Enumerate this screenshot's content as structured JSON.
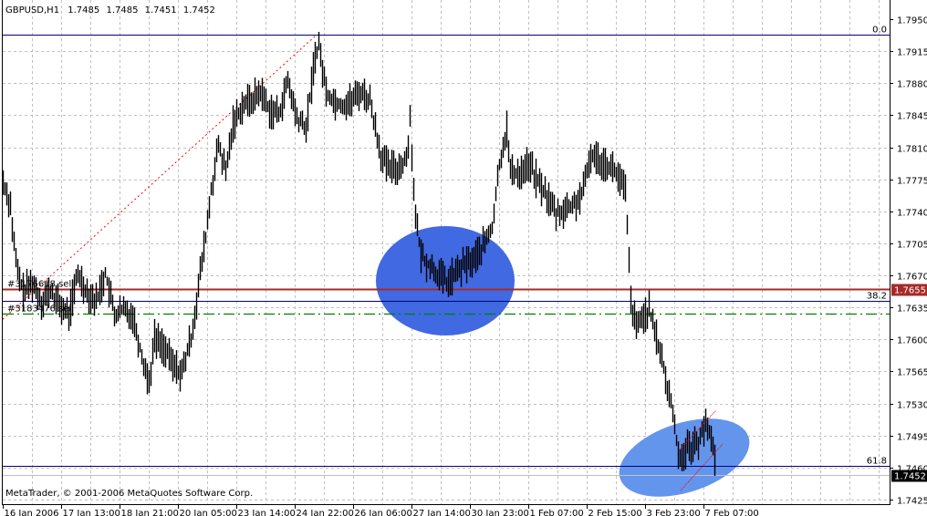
{
  "header": {
    "symbol": "GBPUSD,H1",
    "open": "1.7485",
    "high": "1.7485",
    "low": "1.7451",
    "close": "1.7452"
  },
  "copyright": "MetaTrader, © 2001-2006 MetaQuotes Software Corp.",
  "chart_data": {
    "type": "ohlc-bar",
    "title": "GBPUSD,H1",
    "timeframe": "H1",
    "ylim": [
      1.7425,
      1.795
    ],
    "y_ticks": [
      "1.7950",
      "1.7915",
      "1.7880",
      "1.7845",
      "1.7810",
      "1.7775",
      "1.7740",
      "1.7705",
      "1.7670",
      "1.7635",
      "1.7600",
      "1.7565",
      "1.7530",
      "1.7495",
      "1.7460",
      "1.7425"
    ],
    "x_ticks": [
      "16 Jan 2006",
      "17 Jan 13:00",
      "18 Jan 21:00",
      "20 Jan 05:00",
      "23 Jan 14:00",
      "24 Jan 22:00",
      "26 Jan 06:00",
      "27 Jan 14:00",
      "30 Jan 23:00",
      "1 Feb 07:00",
      "2 Feb 15:00",
      "3 Feb 23:00",
      "7 Feb 07:00"
    ],
    "bars_per_tick": 32,
    "grid": true,
    "price_path": [
      [
        0,
        1.7772
      ],
      [
        4,
        1.7747
      ],
      [
        6,
        1.7702
      ],
      [
        8,
        1.7672
      ],
      [
        11,
        1.7652
      ],
      [
        16,
        1.7662
      ],
      [
        21,
        1.7642
      ],
      [
        26,
        1.7652
      ],
      [
        31,
        1.7637
      ],
      [
        36,
        1.7627
      ],
      [
        41,
        1.7672
      ],
      [
        46,
        1.7652
      ],
      [
        51,
        1.7642
      ],
      [
        56,
        1.7672
      ],
      [
        61,
        1.7627
      ],
      [
        66,
        1.7632
      ],
      [
        71,
        1.7627
      ],
      [
        76,
        1.7582
      ],
      [
        80,
        1.7553
      ],
      [
        83,
        1.7602
      ],
      [
        88,
        1.7592
      ],
      [
        93,
        1.7572
      ],
      [
        98,
        1.7563
      ],
      [
        103,
        1.7602
      ],
      [
        106,
        1.7642
      ],
      [
        108,
        1.7672
      ],
      [
        111,
        1.7712
      ],
      [
        114,
        1.7762
      ],
      [
        118,
        1.7812
      ],
      [
        122,
        1.7782
      ],
      [
        126,
        1.7836
      ],
      [
        131,
        1.7856
      ],
      [
        136,
        1.7861
      ],
      [
        141,
        1.7871
      ],
      [
        146,
        1.7851
      ],
      [
        151,
        1.7846
      ],
      [
        156,
        1.7881
      ],
      [
        161,
        1.7841
      ],
      [
        166,
        1.7831
      ],
      [
        171,
        1.7911
      ],
      [
        173,
        1.7921
      ],
      [
        177,
        1.7871
      ],
      [
        181,
        1.7861
      ],
      [
        186,
        1.7856
      ],
      [
        191,
        1.7861
      ],
      [
        196,
        1.7871
      ],
      [
        201,
        1.7861
      ],
      [
        203,
        1.7841
      ],
      [
        207,
        1.7802
      ],
      [
        211,
        1.7787
      ],
      [
        216,
        1.7787
      ],
      [
        221,
        1.7797
      ],
      [
        223,
        1.7841
      ],
      [
        226,
        1.7732
      ],
      [
        229,
        1.7692
      ],
      [
        233,
        1.7682
      ],
      [
        238,
        1.7672
      ],
      [
        243,
        1.7662
      ],
      [
        248,
        1.7672
      ],
      [
        253,
        1.7682
      ],
      [
        258,
        1.7687
      ],
      [
        263,
        1.7702
      ],
      [
        268,
        1.7722
      ],
      [
        272,
        1.7792
      ],
      [
        276,
        1.7831
      ],
      [
        278,
        1.7782
      ],
      [
        283,
        1.7782
      ],
      [
        288,
        1.7792
      ],
      [
        293,
        1.7772
      ],
      [
        298,
        1.7757
      ],
      [
        303,
        1.7737
      ],
      [
        308,
        1.7742
      ],
      [
        313,
        1.7747
      ],
      [
        318,
        1.7762
      ],
      [
        322,
        1.7802
      ],
      [
        326,
        1.7797
      ],
      [
        331,
        1.7792
      ],
      [
        336,
        1.7782
      ],
      [
        341,
        1.7762
      ],
      [
        342,
        1.7722
      ],
      [
        344,
        1.7642
      ],
      [
        347,
        1.7612
      ],
      [
        351,
        1.7627
      ],
      [
        354,
        1.7632
      ],
      [
        357,
        1.7607
      ],
      [
        361,
        1.7582
      ],
      [
        363,
        1.7553
      ],
      [
        366,
        1.7533
      ],
      [
        368,
        1.7503
      ],
      [
        371,
        1.7468
      ],
      [
        373,
        1.7478
      ],
      [
        376,
        1.7483
      ],
      [
        378,
        1.7483
      ],
      [
        381,
        1.7488
      ],
      [
        383,
        1.7503
      ],
      [
        386,
        1.7503
      ],
      [
        388,
        1.7493
      ],
      [
        390,
        1.7468
      ]
    ],
    "last_bar": {
      "open": 1.7485,
      "high": 1.7485,
      "low": 1.7451,
      "close": 1.7452
    },
    "levels": {
      "fib_0": {
        "label": "0.0",
        "price": 1.7933,
        "color": "#000080"
      },
      "fib_382": {
        "label": "38.2",
        "price": 1.7642,
        "color": "#000080"
      },
      "fib_618": {
        "label": "61.8",
        "price": 1.7462,
        "color": "#000080"
      },
      "order_1": {
        "label": "#3176608 sell",
        "price": 1.7655,
        "color": "#A52A2A",
        "tag": "1.7655"
      },
      "order_2": {
        "label": "#3183476 sell",
        "price": 1.7628,
        "color": "#008000"
      },
      "bid": {
        "price": 1.7452,
        "tag": "1.7452",
        "color": "#C0C0C0"
      }
    },
    "trendline": {
      "from": [
        0,
        1.7622
      ],
      "to": [
        172,
        1.7933
      ],
      "color": "#FF0000"
    },
    "highlight_colors": [
      "#4169E1",
      "#6495ED"
    ],
    "bar_color": "#000000"
  }
}
